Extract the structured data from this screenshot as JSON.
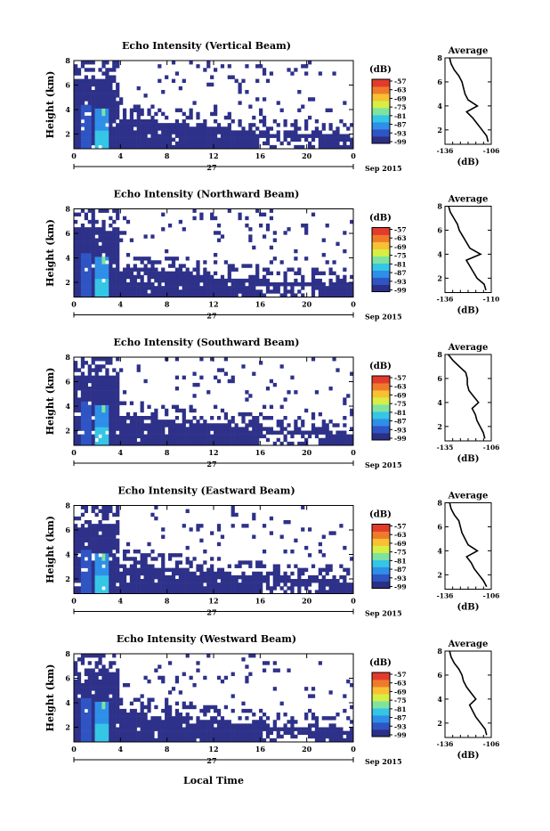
{
  "figure": {
    "xlabel": "Local Time",
    "date_label": "Sep 2015",
    "day_label": "27",
    "colorbar_unit": "(dB)",
    "colorbar_ticks": [
      "-57",
      "-63",
      "-69",
      "-75",
      "-81",
      "-87",
      "-93",
      "-99"
    ],
    "colorbar_colors": [
      "#2b2f86",
      "#2f55c4",
      "#2e8fe8",
      "#35c6e6",
      "#7fe3a0",
      "#d7ef45",
      "#f8c032",
      "#f07a2b",
      "#e23b2b"
    ],
    "background_color": "#2e3189",
    "xticks": [
      "0",
      "4",
      "8",
      "12",
      "16",
      "20",
      "0"
    ],
    "avg_title": "Average",
    "avg_unit": "(dB)"
  },
  "chart_data": [
    {
      "type": "heatmap",
      "title": "Echo Intensity (Vertical Beam)",
      "xlabel": "Local Time",
      "ylabel": "Height (km)",
      "xlim": [
        0,
        24
      ],
      "ylim": [
        0.8,
        8
      ],
      "yticks": [
        "2",
        "4",
        "6",
        "8"
      ],
      "clim": [
        -99,
        -57
      ],
      "avg_profile": {
        "title": "Average",
        "xlabel": "(dB)",
        "xticks": [
          "-136",
          "-106"
        ],
        "xlim": [
          -136,
          -106
        ],
        "yticks": [
          "2",
          "4",
          "6",
          "8"
        ],
        "heights": [
          1.0,
          1.5,
          2.0,
          2.5,
          3.0,
          3.5,
          4.0,
          4.5,
          5.0,
          5.5,
          6.0,
          6.5,
          7.0,
          7.5,
          8.0
        ],
        "values": [
          -108,
          -109,
          -112,
          -115,
          -118,
          -122,
          -115,
          -121,
          -123,
          -124,
          -125,
          -127,
          -130,
          -132,
          -133
        ]
      }
    },
    {
      "type": "heatmap",
      "title": "Echo Intensity (Northward Beam)",
      "xlabel": "Local Time",
      "ylabel": "Height (km)",
      "xlim": [
        0,
        24
      ],
      "ylim": [
        0.8,
        8
      ],
      "yticks": [
        "2",
        "4",
        "6",
        "8"
      ],
      "clim": [
        -99,
        -57
      ],
      "avg_profile": {
        "title": "Average",
        "xlabel": "(dB)",
        "xticks": [
          "-136",
          "-110"
        ],
        "xlim": [
          -136,
          -110
        ],
        "yticks": [
          "2",
          "4",
          "6",
          "8"
        ],
        "heights": [
          1.0,
          1.5,
          2.0,
          2.5,
          3.0,
          3.5,
          4.0,
          4.5,
          5.0,
          5.5,
          6.0,
          6.5,
          7.0,
          7.5,
          8.0
        ],
        "values": [
          -113,
          -114,
          -118,
          -120,
          -122,
          -124,
          -116,
          -122,
          -124,
          -126,
          -128,
          -129,
          -131,
          -133,
          -134
        ]
      }
    },
    {
      "type": "heatmap",
      "title": "Echo Intensity (Southward Beam)",
      "xlabel": "Local Time",
      "ylabel": "Height (km)",
      "xlim": [
        0,
        24
      ],
      "ylim": [
        0.8,
        8
      ],
      "yticks": [
        "2",
        "4",
        "6",
        "8"
      ],
      "clim": [
        -99,
        -57
      ],
      "avg_profile": {
        "title": "Average",
        "xlabel": "(dB)",
        "xticks": [
          "-135",
          "-106"
        ],
        "xlim": [
          -135,
          -106
        ],
        "yticks": [
          "2",
          "4",
          "6",
          "8"
        ],
        "heights": [
          1.0,
          1.5,
          2.0,
          2.5,
          3.0,
          3.5,
          4.0,
          4.5,
          5.0,
          5.5,
          6.0,
          6.5,
          7.0,
          7.5,
          8.0
        ],
        "values": [
          -110,
          -111,
          -113,
          -115,
          -116,
          -118,
          -114,
          -117,
          -120,
          -121,
          -121,
          -122,
          -126,
          -130,
          -133
        ]
      }
    },
    {
      "type": "heatmap",
      "title": "Echo Intensity (Eastward Beam)",
      "xlabel": "Local Time",
      "ylabel": "Height (km)",
      "xlim": [
        0,
        24
      ],
      "ylim": [
        0.8,
        8
      ],
      "yticks": [
        "2",
        "4",
        "6",
        "8"
      ],
      "clim": [
        -99,
        -57
      ],
      "avg_profile": {
        "title": "Average",
        "xlabel": "(dB)",
        "xticks": [
          "-136",
          "-106"
        ],
        "xlim": [
          -136,
          -106
        ],
        "yticks": [
          "2",
          "4",
          "6",
          "8"
        ],
        "heights": [
          1.0,
          1.5,
          2.0,
          2.5,
          3.0,
          3.5,
          4.0,
          4.5,
          5.0,
          5.5,
          6.0,
          6.5,
          7.0,
          7.5,
          8.0
        ],
        "values": [
          -109,
          -111,
          -114,
          -117,
          -119,
          -122,
          -115,
          -121,
          -123,
          -125,
          -126,
          -127,
          -130,
          -132,
          -133
        ]
      }
    },
    {
      "type": "heatmap",
      "title": "Echo Intensity (Westward Beam)",
      "xlabel": "Local Time",
      "ylabel": "Height (km)",
      "xlim": [
        0,
        24
      ],
      "ylim": [
        0.8,
        8
      ],
      "yticks": [
        "2",
        "4",
        "6",
        "8"
      ],
      "clim": [
        -99,
        -57
      ],
      "avg_profile": {
        "title": "Average",
        "xlabel": "(dB)",
        "xticks": [
          "-136",
          "-106"
        ],
        "xlim": [
          -136,
          -106
        ],
        "yticks": [
          "2",
          "4",
          "6",
          "8"
        ],
        "heights": [
          1.0,
          1.5,
          2.0,
          2.5,
          3.0,
          3.5,
          4.0,
          4.5,
          5.0,
          5.5,
          6.0,
          6.5,
          7.0,
          7.5,
          8.0
        ],
        "values": [
          -109,
          -110,
          -113,
          -116,
          -118,
          -120,
          -116,
          -119,
          -122,
          -124,
          -125,
          -127,
          -130,
          -132,
          -133
        ]
      }
    }
  ]
}
